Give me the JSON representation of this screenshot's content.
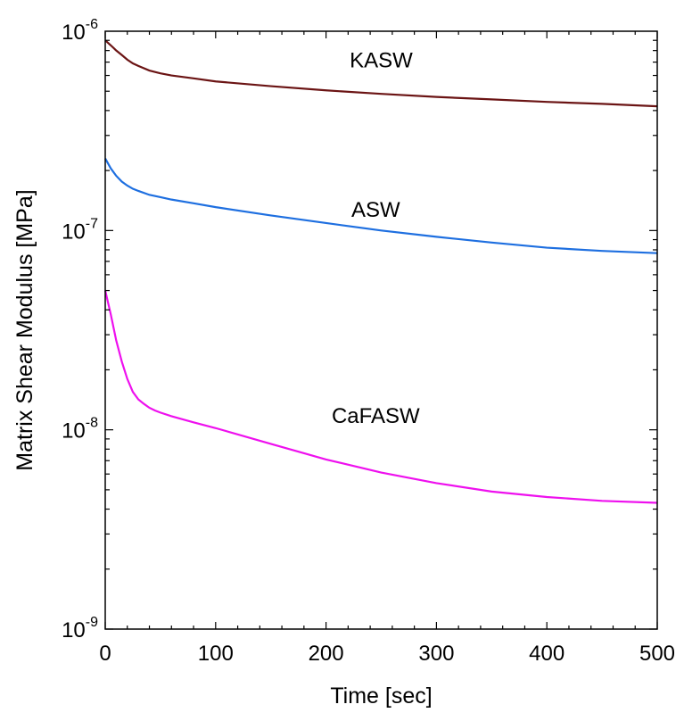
{
  "chart_data": {
    "type": "line",
    "title": "",
    "xlabel": "Time [sec]",
    "ylabel": "Matrix Shear Modulus [MPa]",
    "xlim": [
      0,
      500
    ],
    "ylim": [
      1e-09,
      1e-06
    ],
    "yscale": "log",
    "grid": false,
    "legend": "none",
    "x_ticks": [
      {
        "value": 0,
        "label": "0"
      },
      {
        "value": 100,
        "label": "100"
      },
      {
        "value": 200,
        "label": "200"
      },
      {
        "value": 300,
        "label": "300"
      },
      {
        "value": 400,
        "label": "400"
      },
      {
        "value": 500,
        "label": "500"
      }
    ],
    "y_ticks": [
      {
        "value": 1e-06,
        "base": "10",
        "exp": "-6"
      },
      {
        "value": 1e-07,
        "base": "10",
        "exp": "-7"
      },
      {
        "value": 1e-08,
        "base": "10",
        "exp": "-8"
      },
      {
        "value": 1e-09,
        "base": "10",
        "exp": "-9"
      }
    ],
    "series": [
      {
        "name": "KASW",
        "color": "#6b1414",
        "label_at": [
          250,
          6.6e-07
        ],
        "x": [
          0,
          5,
          10,
          15,
          20,
          25,
          30,
          40,
          50,
          60,
          80,
          100,
          150,
          200,
          250,
          300,
          350,
          400,
          450,
          500
        ],
        "y": [
          9e-07,
          8.5e-07,
          8e-07,
          7.6e-07,
          7.2e-07,
          6.9e-07,
          6.7e-07,
          6.35e-07,
          6.15e-07,
          6e-07,
          5.8e-07,
          5.6e-07,
          5.3e-07,
          5.05e-07,
          4.85e-07,
          4.68e-07,
          4.55e-07,
          4.42e-07,
          4.32e-07,
          4.2e-07
        ]
      },
      {
        "name": "ASW",
        "color": "#1e6fe0",
        "label_at": [
          245,
          1.17e-07
        ],
        "x": [
          0,
          5,
          10,
          15,
          20,
          25,
          30,
          40,
          50,
          60,
          80,
          100,
          150,
          200,
          250,
          300,
          350,
          400,
          450,
          500
        ],
        "y": [
          2.3e-07,
          2.05e-07,
          1.88e-07,
          1.76e-07,
          1.68e-07,
          1.62e-07,
          1.58e-07,
          1.51e-07,
          1.47e-07,
          1.43e-07,
          1.37e-07,
          1.31e-07,
          1.19e-07,
          1.09e-07,
          1e-07,
          9.3e-08,
          8.7e-08,
          8.2e-08,
          7.9e-08,
          7.7e-08
        ]
      },
      {
        "name": "CaFASW",
        "color": "#ee10ee",
        "label_at": [
          245,
          1.08e-08
        ],
        "x": [
          0,
          5,
          10,
          15,
          20,
          25,
          30,
          35,
          40,
          45,
          50,
          60,
          80,
          100,
          150,
          200,
          250,
          300,
          350,
          400,
          450,
          500
        ],
        "y": [
          5e-08,
          3.8e-08,
          2.8e-08,
          2.2e-08,
          1.8e-08,
          1.55e-08,
          1.42e-08,
          1.35e-08,
          1.29e-08,
          1.25e-08,
          1.22e-08,
          1.17e-08,
          1.09e-08,
          1.02e-08,
          8.5e-09,
          7.1e-09,
          6.1e-09,
          5.4e-09,
          4.9e-09,
          4.6e-09,
          4.4e-09,
          4.3e-09
        ]
      }
    ]
  }
}
